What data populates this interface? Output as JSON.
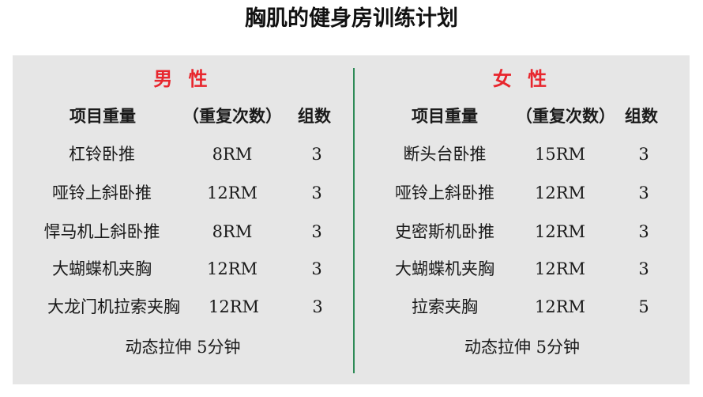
{
  "title": "胸肌的健身房训练计划",
  "headers": {
    "exercise": "项目重量",
    "reps": "（重复次数）",
    "sets": "组数"
  },
  "male": {
    "label": "男 性",
    "rows": [
      {
        "exercise": "杠铃卧推",
        "reps": "8RM",
        "sets": "3"
      },
      {
        "exercise": "哑铃上斜卧推",
        "reps": "12RM",
        "sets": "3"
      },
      {
        "exercise": "悍马机上斜卧推",
        "reps": "8RM",
        "sets": "3"
      },
      {
        "exercise": "大蝴蝶机夹胸",
        "reps": "12RM",
        "sets": "3"
      },
      {
        "exercise": "大龙门机拉索夹胸",
        "reps": "12RM",
        "sets": "3"
      }
    ],
    "footer": "动态拉伸 5分钟"
  },
  "female": {
    "label": "女 性",
    "rows": [
      {
        "exercise": "断头台卧推",
        "reps": "15RM",
        "sets": "3"
      },
      {
        "exercise": "哑铃上斜卧推",
        "reps": "12RM",
        "sets": "3"
      },
      {
        "exercise": "史密斯机卧推",
        "reps": "12RM",
        "sets": "3"
      },
      {
        "exercise": "大蝴蝶机夹胸",
        "reps": "12RM",
        "sets": "3"
      },
      {
        "exercise": "拉索夹胸",
        "reps": "12RM",
        "sets": "5"
      }
    ],
    "footer": "动态拉伸 5分钟"
  },
  "colors": {
    "gender_label": "#e8262d",
    "divider": "#2e8b57",
    "panel": "#e6e6e6"
  }
}
